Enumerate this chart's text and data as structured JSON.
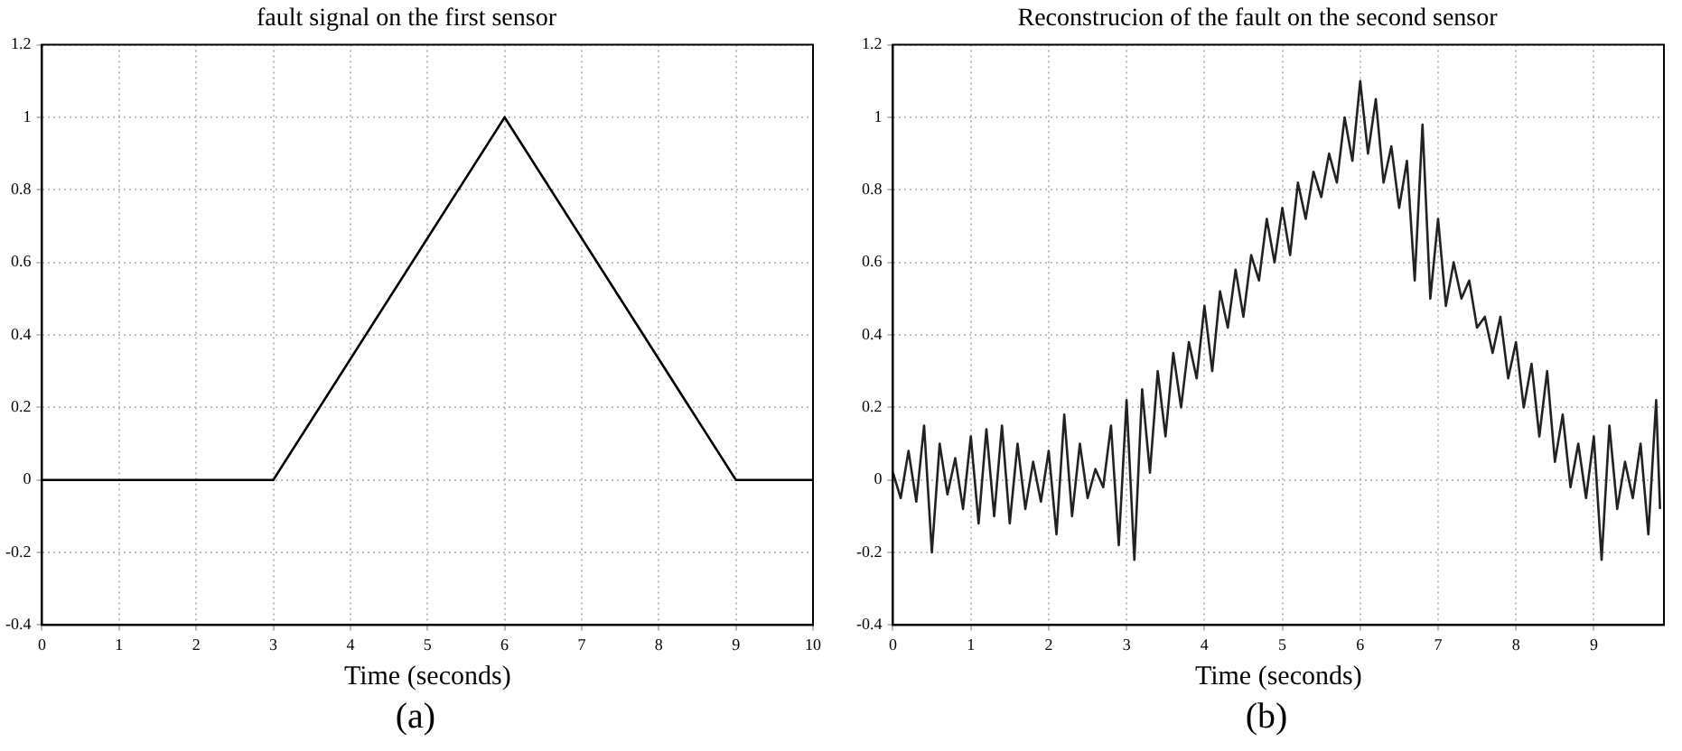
{
  "chart_data": [
    {
      "type": "line",
      "title": "fault signal on the first sensor",
      "xlabel": "Time (seconds)",
      "annotations": [
        "(a)"
      ],
      "x": [
        0,
        3,
        6,
        9,
        10
      ],
      "series": [
        {
          "color": "#000000",
          "values": [
            0,
            0,
            1,
            0,
            0
          ]
        }
      ],
      "xlim": [
        0,
        10
      ],
      "xticks": [
        0,
        1,
        2,
        3,
        4,
        5,
        6,
        7,
        8,
        9,
        10
      ],
      "ylim": [
        -0.4,
        1.2
      ],
      "yticks": [
        -0.4,
        -0.2,
        0,
        0.2,
        0.4,
        0.6,
        0.8,
        1,
        1.2
      ],
      "grid": true,
      "marker": "none",
      "line_style": "solid"
    },
    {
      "type": "line",
      "title": "Reconstrucion of the fault on the second sensor",
      "xlabel": "Time (seconds)",
      "annotations": [
        "(b)"
      ],
      "x": [
        0,
        0.1,
        0.2,
        0.3,
        0.4,
        0.5,
        0.6,
        0.7,
        0.8,
        0.9,
        1,
        1.1,
        1.2,
        1.3,
        1.4,
        1.5,
        1.6,
        1.7,
        1.8,
        1.9,
        2,
        2.1,
        2.2,
        2.3,
        2.4,
        2.5,
        2.6,
        2.7,
        2.8,
        2.9,
        3,
        3.1,
        3.2,
        3.3,
        3.4,
        3.5,
        3.6,
        3.7,
        3.8,
        3.9,
        4,
        4.1,
        4.2,
        4.3,
        4.4,
        4.5,
        4.6,
        4.7,
        4.8,
        4.9,
        5,
        5.1,
        5.2,
        5.3,
        5.4,
        5.5,
        5.6,
        5.7,
        5.8,
        5.9,
        6,
        6.1,
        6.2,
        6.3,
        6.4,
        6.5,
        6.6,
        6.7,
        6.8,
        6.9,
        7,
        7.1,
        7.2,
        7.3,
        7.4,
        7.5,
        7.6,
        7.7,
        7.8,
        7.9,
        8,
        8.1,
        8.2,
        8.3,
        8.4,
        8.5,
        8.6,
        8.7,
        8.8,
        8.9,
        9,
        9.1,
        9.2,
        9.3,
        9.4,
        9.5,
        9.6,
        9.7,
        9.8,
        9.85
      ],
      "series": [
        {
          "color": "#222222",
          "values": [
            0.02,
            -0.05,
            0.08,
            -0.06,
            0.15,
            -0.2,
            0.1,
            -0.04,
            0.06,
            -0.08,
            0.12,
            -0.12,
            0.14,
            -0.1,
            0.15,
            -0.12,
            0.1,
            -0.08,
            0.05,
            -0.06,
            0.08,
            -0.15,
            0.18,
            -0.1,
            0.1,
            -0.05,
            0.03,
            -0.02,
            0.15,
            -0.18,
            0.22,
            -0.22,
            0.25,
            0.02,
            0.3,
            0.12,
            0.35,
            0.2,
            0.38,
            0.28,
            0.48,
            0.3,
            0.52,
            0.42,
            0.58,
            0.45,
            0.62,
            0.55,
            0.72,
            0.6,
            0.75,
            0.62,
            0.82,
            0.72,
            0.85,
            0.78,
            0.9,
            0.82,
            1,
            0.88,
            1.1,
            0.9,
            1.05,
            0.82,
            0.92,
            0.75,
            0.88,
            0.55,
            0.98,
            0.5,
            0.72,
            0.48,
            0.6,
            0.5,
            0.55,
            0.42,
            0.45,
            0.35,
            0.45,
            0.28,
            0.38,
            0.2,
            0.32,
            0.12,
            0.3,
            0.05,
            0.18,
            -0.02,
            0.1,
            -0.05,
            0.12,
            -0.22,
            0.15,
            -0.08,
            0.05,
            -0.05,
            0.1,
            -0.15,
            0.22,
            -0.08
          ]
        }
      ],
      "xlim": [
        0,
        9.9
      ],
      "xticks": [
        0,
        1,
        2,
        3,
        4,
        5,
        6,
        7,
        8,
        9
      ],
      "ylim": [
        -0.4,
        1.2
      ],
      "yticks": [
        -0.4,
        -0.2,
        0,
        0.2,
        0.4,
        0.6,
        0.8,
        1,
        1.2
      ],
      "grid": true,
      "marker": "none",
      "line_style": "solid"
    }
  ]
}
